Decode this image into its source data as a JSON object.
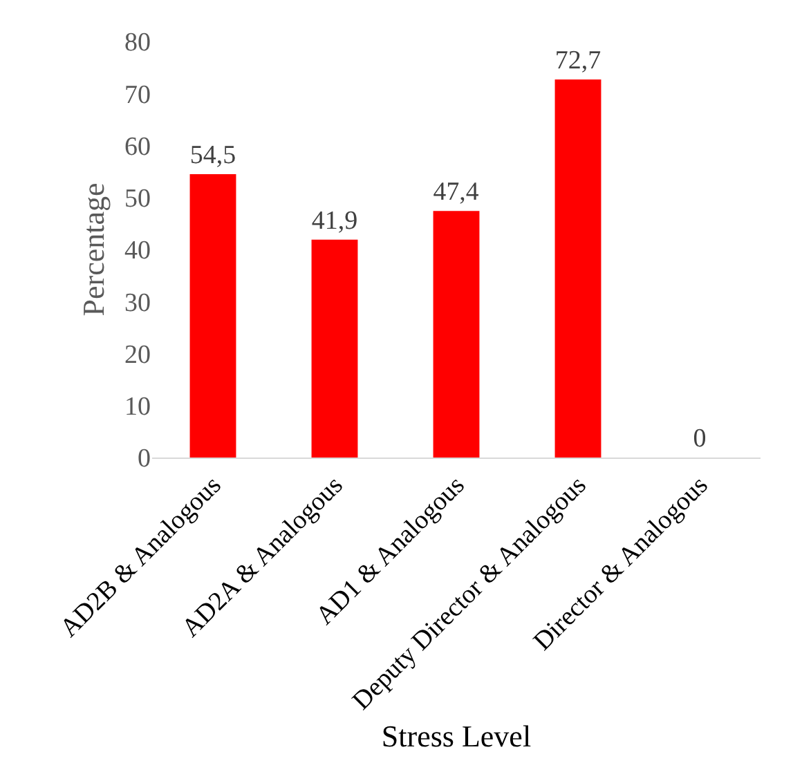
{
  "chart_data": {
    "type": "bar",
    "xlabel": "Stress Level",
    "ylabel": "Percentage",
    "categories": [
      "AD2B & Analogous",
      "AD2A & Analogous",
      "AD1 & Analogous",
      "Deputy Director & Analogous",
      "Director & Analogous"
    ],
    "values": [
      54.5,
      41.9,
      47.4,
      72.7,
      0
    ],
    "value_labels": [
      "54,5",
      "41,9",
      "47,4",
      "72,7",
      "0"
    ],
    "color": "#ff0000",
    "ylim": [
      0,
      80
    ],
    "yticks": [
      0,
      10,
      20,
      30,
      40,
      50,
      60,
      70,
      80
    ],
    "legend": false
  }
}
